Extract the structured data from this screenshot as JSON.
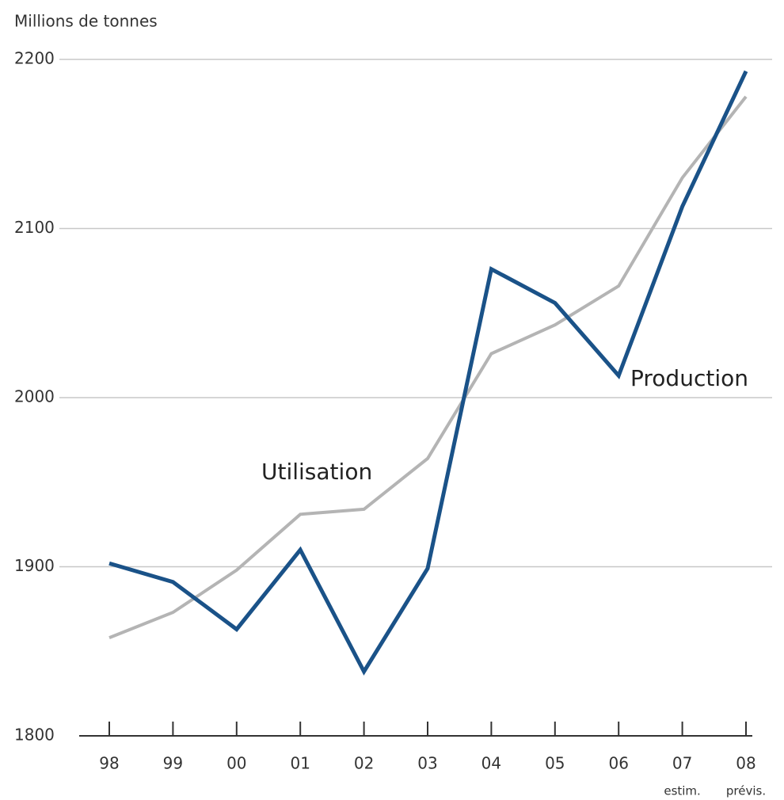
{
  "chart_data": {
    "type": "line",
    "y_axis_label": "Millions de tonnes",
    "categories": [
      "98",
      "99",
      "00",
      "01",
      "02",
      "03",
      "04",
      "05",
      "06",
      "07",
      "08"
    ],
    "category_notes": [
      null,
      null,
      null,
      null,
      null,
      null,
      null,
      null,
      null,
      "estim.",
      "prévis."
    ],
    "series": [
      {
        "name": "Utilisation",
        "color": "#b4b4b4",
        "values": [
          1858,
          1873,
          1898,
          1931,
          1934,
          1964,
          2026,
          2043,
          2066,
          2130,
          2178
        ]
      },
      {
        "name": "Production",
        "color": "#1a5288",
        "values": [
          1902,
          1891,
          1863,
          1910,
          1838,
          1899,
          2076,
          2056,
          2013,
          2113,
          2193
        ]
      }
    ],
    "ylim": [
      1800,
      2200
    ],
    "yticks": [
      1800,
      1900,
      2000,
      2100,
      2200
    ],
    "grid": true
  }
}
